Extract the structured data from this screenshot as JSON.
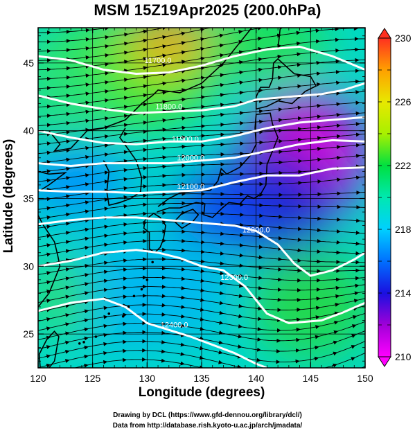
{
  "title": "MSM 15Z19Apr2025 (200.0hPa)",
  "xlabel": "Longitude (degrees)",
  "ylabel": "Latitude  (degrees)",
  "credits": [
    "Drawing by DCL (https://www.gfd-dennou.org/library/dcl/)",
    "Data from http://database.rish.kyoto-u.ac.jp/arch/jmadata/"
  ],
  "chart_data": {
    "type": "heatmap",
    "x_range": [
      120,
      150
    ],
    "y_range": [
      22.5,
      47.6
    ],
    "x_ticks": [
      "120",
      "125",
      "130",
      "135",
      "140",
      "145",
      "150"
    ],
    "y_ticks": [
      "25",
      "30",
      "35",
      "40",
      "45"
    ],
    "grid": true,
    "colorbar": {
      "range": [
        210,
        230
      ],
      "ticks": [
        "210",
        "214",
        "218",
        "222",
        "226",
        "230"
      ],
      "placement": "right"
    },
    "contours": [
      {
        "label": "11700.0",
        "lon": 131,
        "lat": 45.0
      },
      {
        "label": "11800.0",
        "lon": 132,
        "lat": 41.6
      },
      {
        "label": "11900.0",
        "lon": 133.5,
        "lat": 39.2
      },
      {
        "label": "12000.0",
        "lon": 134,
        "lat": 37.8
      },
      {
        "label": "12100.0",
        "lon": 134,
        "lat": 35.7
      },
      {
        "label": "12200.0",
        "lon": 140,
        "lat": 32.5
      },
      {
        "label": "12300.0",
        "lon": 138,
        "lat": 29.0
      },
      {
        "label": "12400.0",
        "lon": 132.5,
        "lat": 25.5
      }
    ]
  }
}
